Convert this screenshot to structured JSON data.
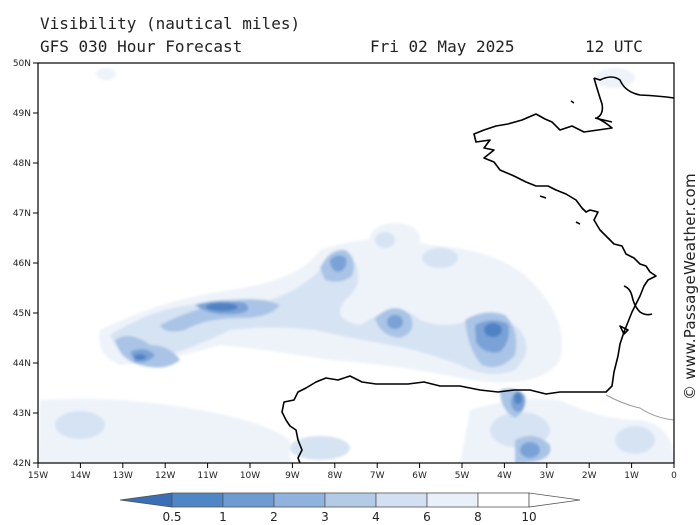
{
  "header": {
    "title": "Visibility (nautical miles)",
    "model_line": "GFS 030 Hour Forecast",
    "date": "Fri 02 May 2025",
    "time": "12 UTC"
  },
  "credit": "© www.PassageWeather.com",
  "axes": {
    "lat_labels": [
      "50N",
      "49N",
      "48N",
      "47N",
      "46N",
      "45N",
      "44N",
      "43N",
      "42N"
    ],
    "lon_labels": [
      "15W",
      "14W",
      "13W",
      "12W",
      "11W",
      "10W",
      "9W",
      "8W",
      "7W",
      "6W",
      "5W",
      "4W",
      "3W",
      "2W",
      "1W",
      "0"
    ],
    "lat_range": [
      42,
      50
    ],
    "lon_range": [
      -15,
      0
    ]
  },
  "colorbar": {
    "labels": [
      "0.5",
      "1",
      "2",
      "3",
      "4",
      "6",
      "8",
      "10"
    ],
    "colors": [
      "#3a6fb8",
      "#4f86c6",
      "#6d9bd2",
      "#8fb3de",
      "#b4cbe8",
      "#d3e0f2",
      "#eaf0f9"
    ]
  },
  "field_colors": {
    "very_light": "#eef3fa",
    "light": "#d6e3f3",
    "medium": "#a9c4e6",
    "strong": "#7aa2d6",
    "dark": "#4f82c4"
  }
}
